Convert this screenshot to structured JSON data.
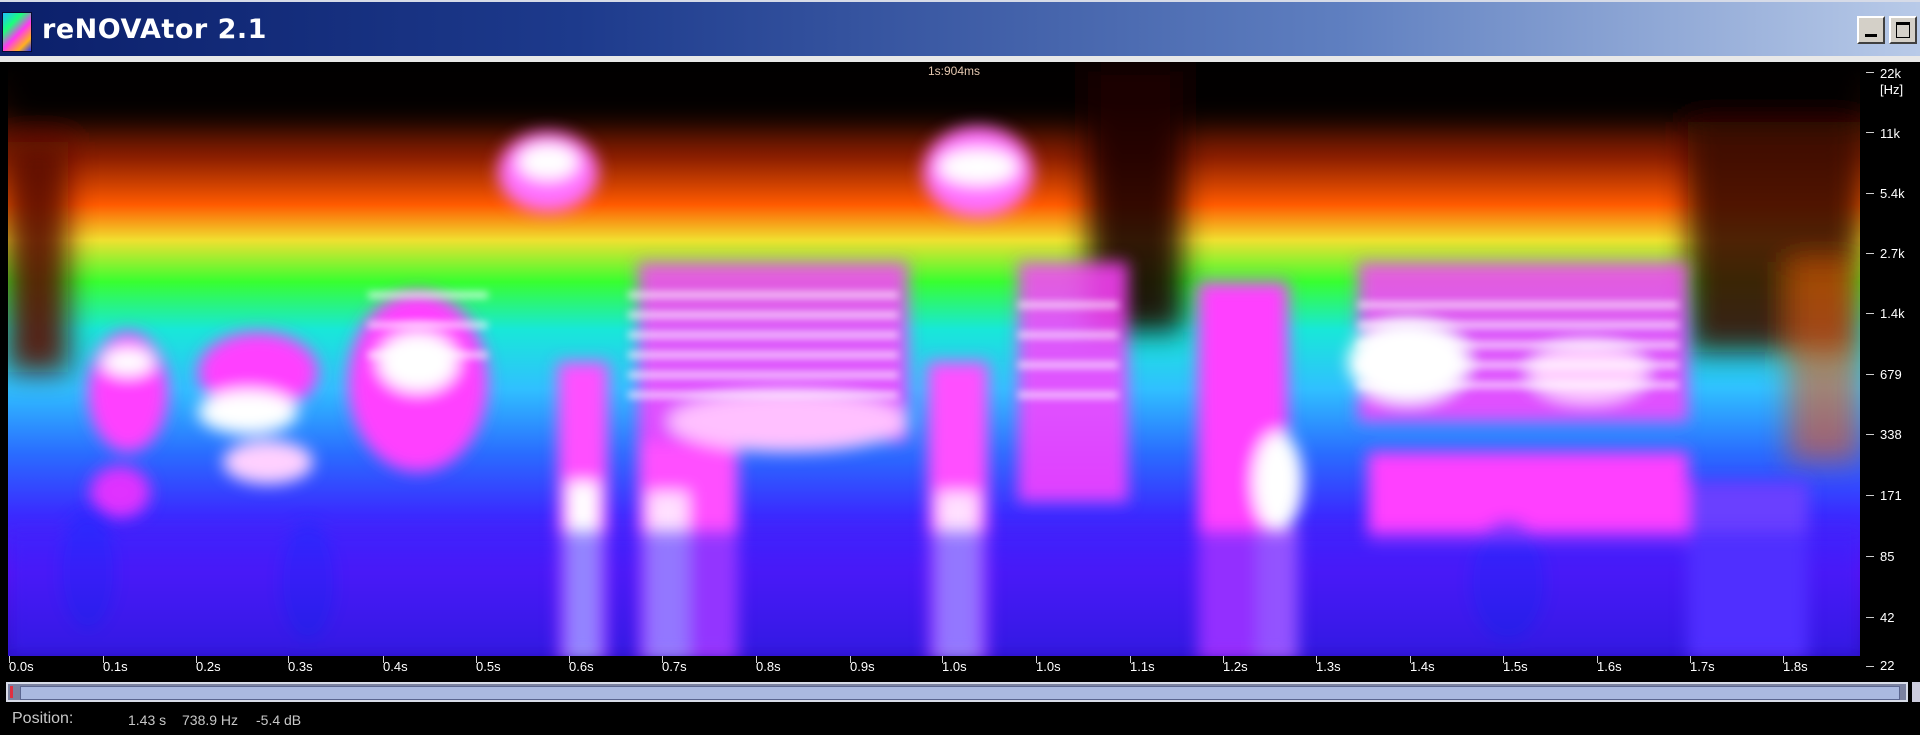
{
  "window": {
    "title": "reNOVAtor 2.1"
  },
  "spectrogram": {
    "cursor_label": "1s:904ms",
    "frequency_labels": [
      "22k",
      "[Hz]",
      "11k",
      "5.4k",
      "2.7k",
      "1.4k",
      "679",
      "338",
      "171",
      "85",
      "42",
      "22"
    ],
    "time_labels": [
      "0.0s",
      "0.1s",
      "0.2s",
      "0.3s",
      "0.4s",
      "0.5s",
      "0.6s",
      "0.7s",
      "0.8s",
      "0.9s",
      "1.0s",
      "1.0s",
      "1.1s",
      "1.2s",
      "1.3s",
      "1.4s",
      "1.5s",
      "1.6s",
      "1.7s",
      "1.8s"
    ]
  },
  "status": {
    "label": "Position:",
    "time": "1.43 s",
    "frequency": "738.9 Hz",
    "level": "-5.4 dB"
  }
}
